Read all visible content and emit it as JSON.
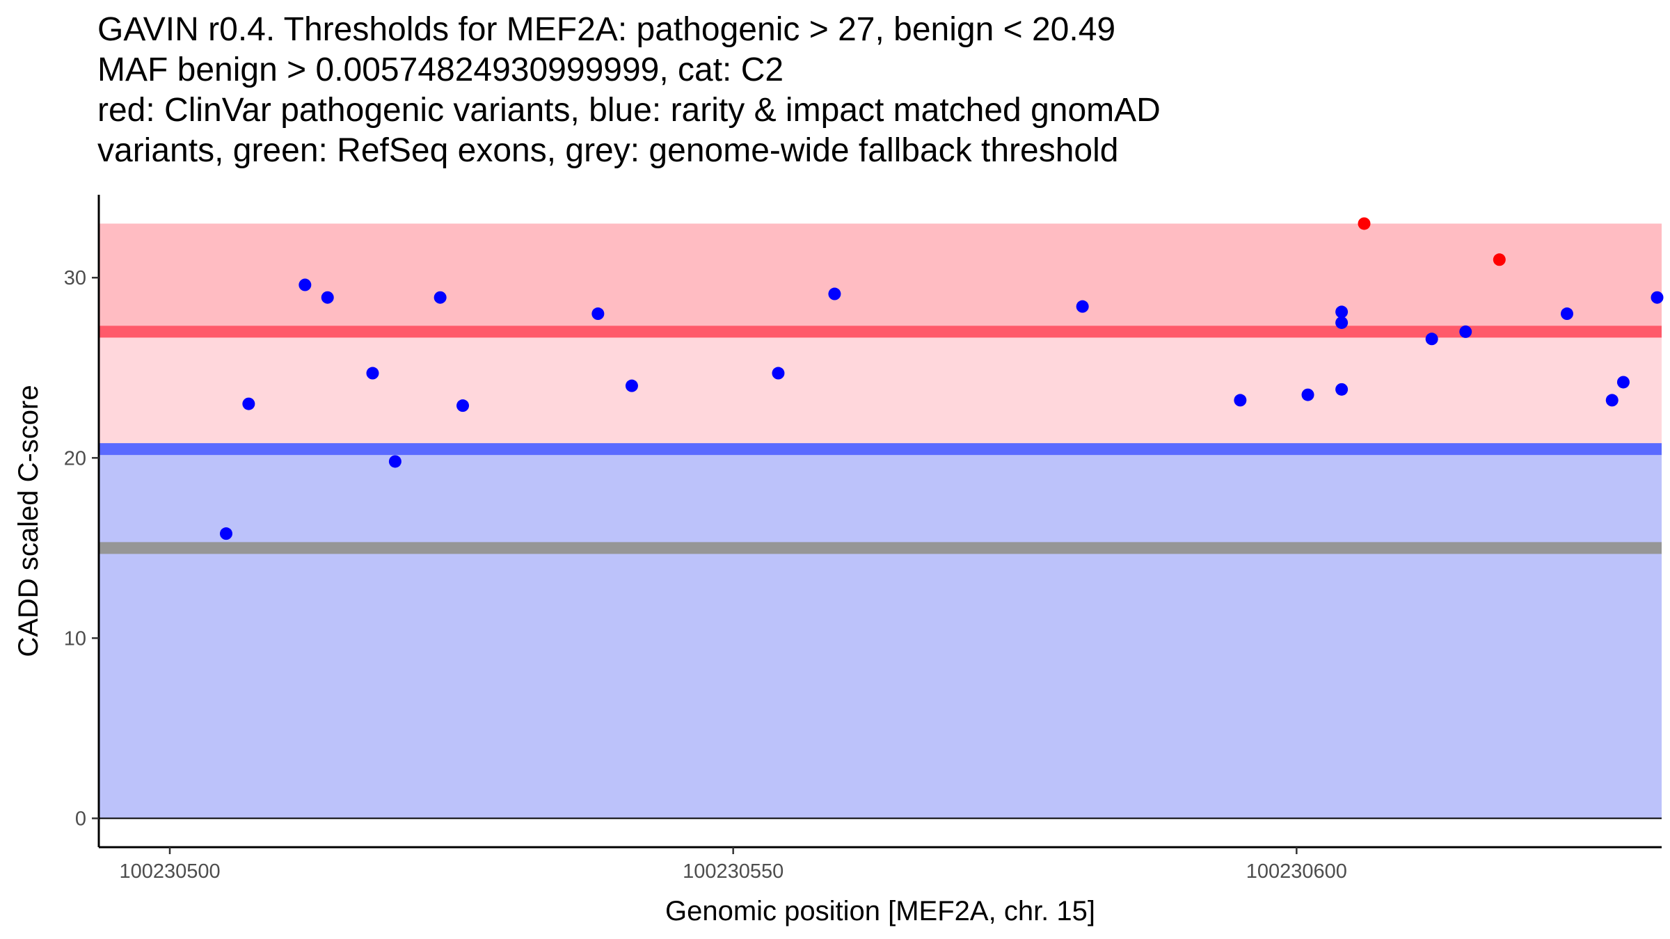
{
  "title_lines": [
    "GAVIN r0.4. Thresholds for MEF2A: pathogenic > 27, benign < 20.49",
    "MAF benign > 0.00574824930999999, cat: C2",
    "red: ClinVar pathogenic variants, blue: rarity & impact matched gnomAD",
    "variants, green: RefSeq exons, grey: genome-wide fallback threshold"
  ],
  "chart_data": {
    "type": "scatter",
    "xlabel": "Genomic position [MEF2A, chr. 15]",
    "ylabel": "CADD scaled C-score",
    "xlim": [
      100230493.7,
      100230632.4
    ],
    "ylim": [
      -1.6,
      34.6
    ],
    "x_ticks": [
      100230500,
      100230550,
      100230600
    ],
    "x_tick_labels": [
      "100230500",
      "100230550",
      "100230600"
    ],
    "y_ticks": [
      0,
      10,
      20,
      30
    ],
    "y_tick_labels": [
      "0",
      "10",
      "20",
      "30"
    ],
    "thresholds": {
      "pathogenic": 27,
      "benign": 20.49,
      "fallback": 15,
      "max_score": 33,
      "min_score": 0
    },
    "colors": {
      "pathogenic_band": "#ffbcc2",
      "mid_band": "#ffd7dc",
      "benign_band": "#bcc2fa",
      "pathogenic_line": "#ff5a6a",
      "benign_line": "#5a6aff",
      "fallback_line": "#969696",
      "pathogenic_point": "#ff0000",
      "benign_point": "#0000ff"
    },
    "series": [
      {
        "name": "ClinVar pathogenic variants",
        "color": "#ff0000",
        "points": [
          {
            "x": 100230606,
            "y": 33.0
          },
          {
            "x": 100230618,
            "y": 31.0
          }
        ]
      },
      {
        "name": "rarity & impact matched gnomAD variants",
        "color": "#0000ff",
        "points": [
          {
            "x": 100230505,
            "y": 15.8
          },
          {
            "x": 100230507,
            "y": 23.0
          },
          {
            "x": 100230512,
            "y": 29.6
          },
          {
            "x": 100230514,
            "y": 28.9
          },
          {
            "x": 100230518,
            "y": 24.7
          },
          {
            "x": 100230520,
            "y": 19.8
          },
          {
            "x": 100230524,
            "y": 28.9
          },
          {
            "x": 100230526,
            "y": 22.9
          },
          {
            "x": 100230538,
            "y": 28.0
          },
          {
            "x": 100230541,
            "y": 24.0
          },
          {
            "x": 100230554,
            "y": 24.7
          },
          {
            "x": 100230559,
            "y": 29.1
          },
          {
            "x": 100230581,
            "y": 28.4
          },
          {
            "x": 100230595,
            "y": 23.2
          },
          {
            "x": 100230601,
            "y": 23.5
          },
          {
            "x": 100230604,
            "y": 28.1
          },
          {
            "x": 100230604,
            "y": 27.5
          },
          {
            "x": 100230604,
            "y": 23.8
          },
          {
            "x": 100230612,
            "y": 26.6
          },
          {
            "x": 100230615,
            "y": 27.0
          },
          {
            "x": 100230624,
            "y": 28.0
          },
          {
            "x": 100230628,
            "y": 23.2
          },
          {
            "x": 100230629,
            "y": 24.2
          },
          {
            "x": 100230632,
            "y": 28.9
          }
        ]
      }
    ]
  }
}
